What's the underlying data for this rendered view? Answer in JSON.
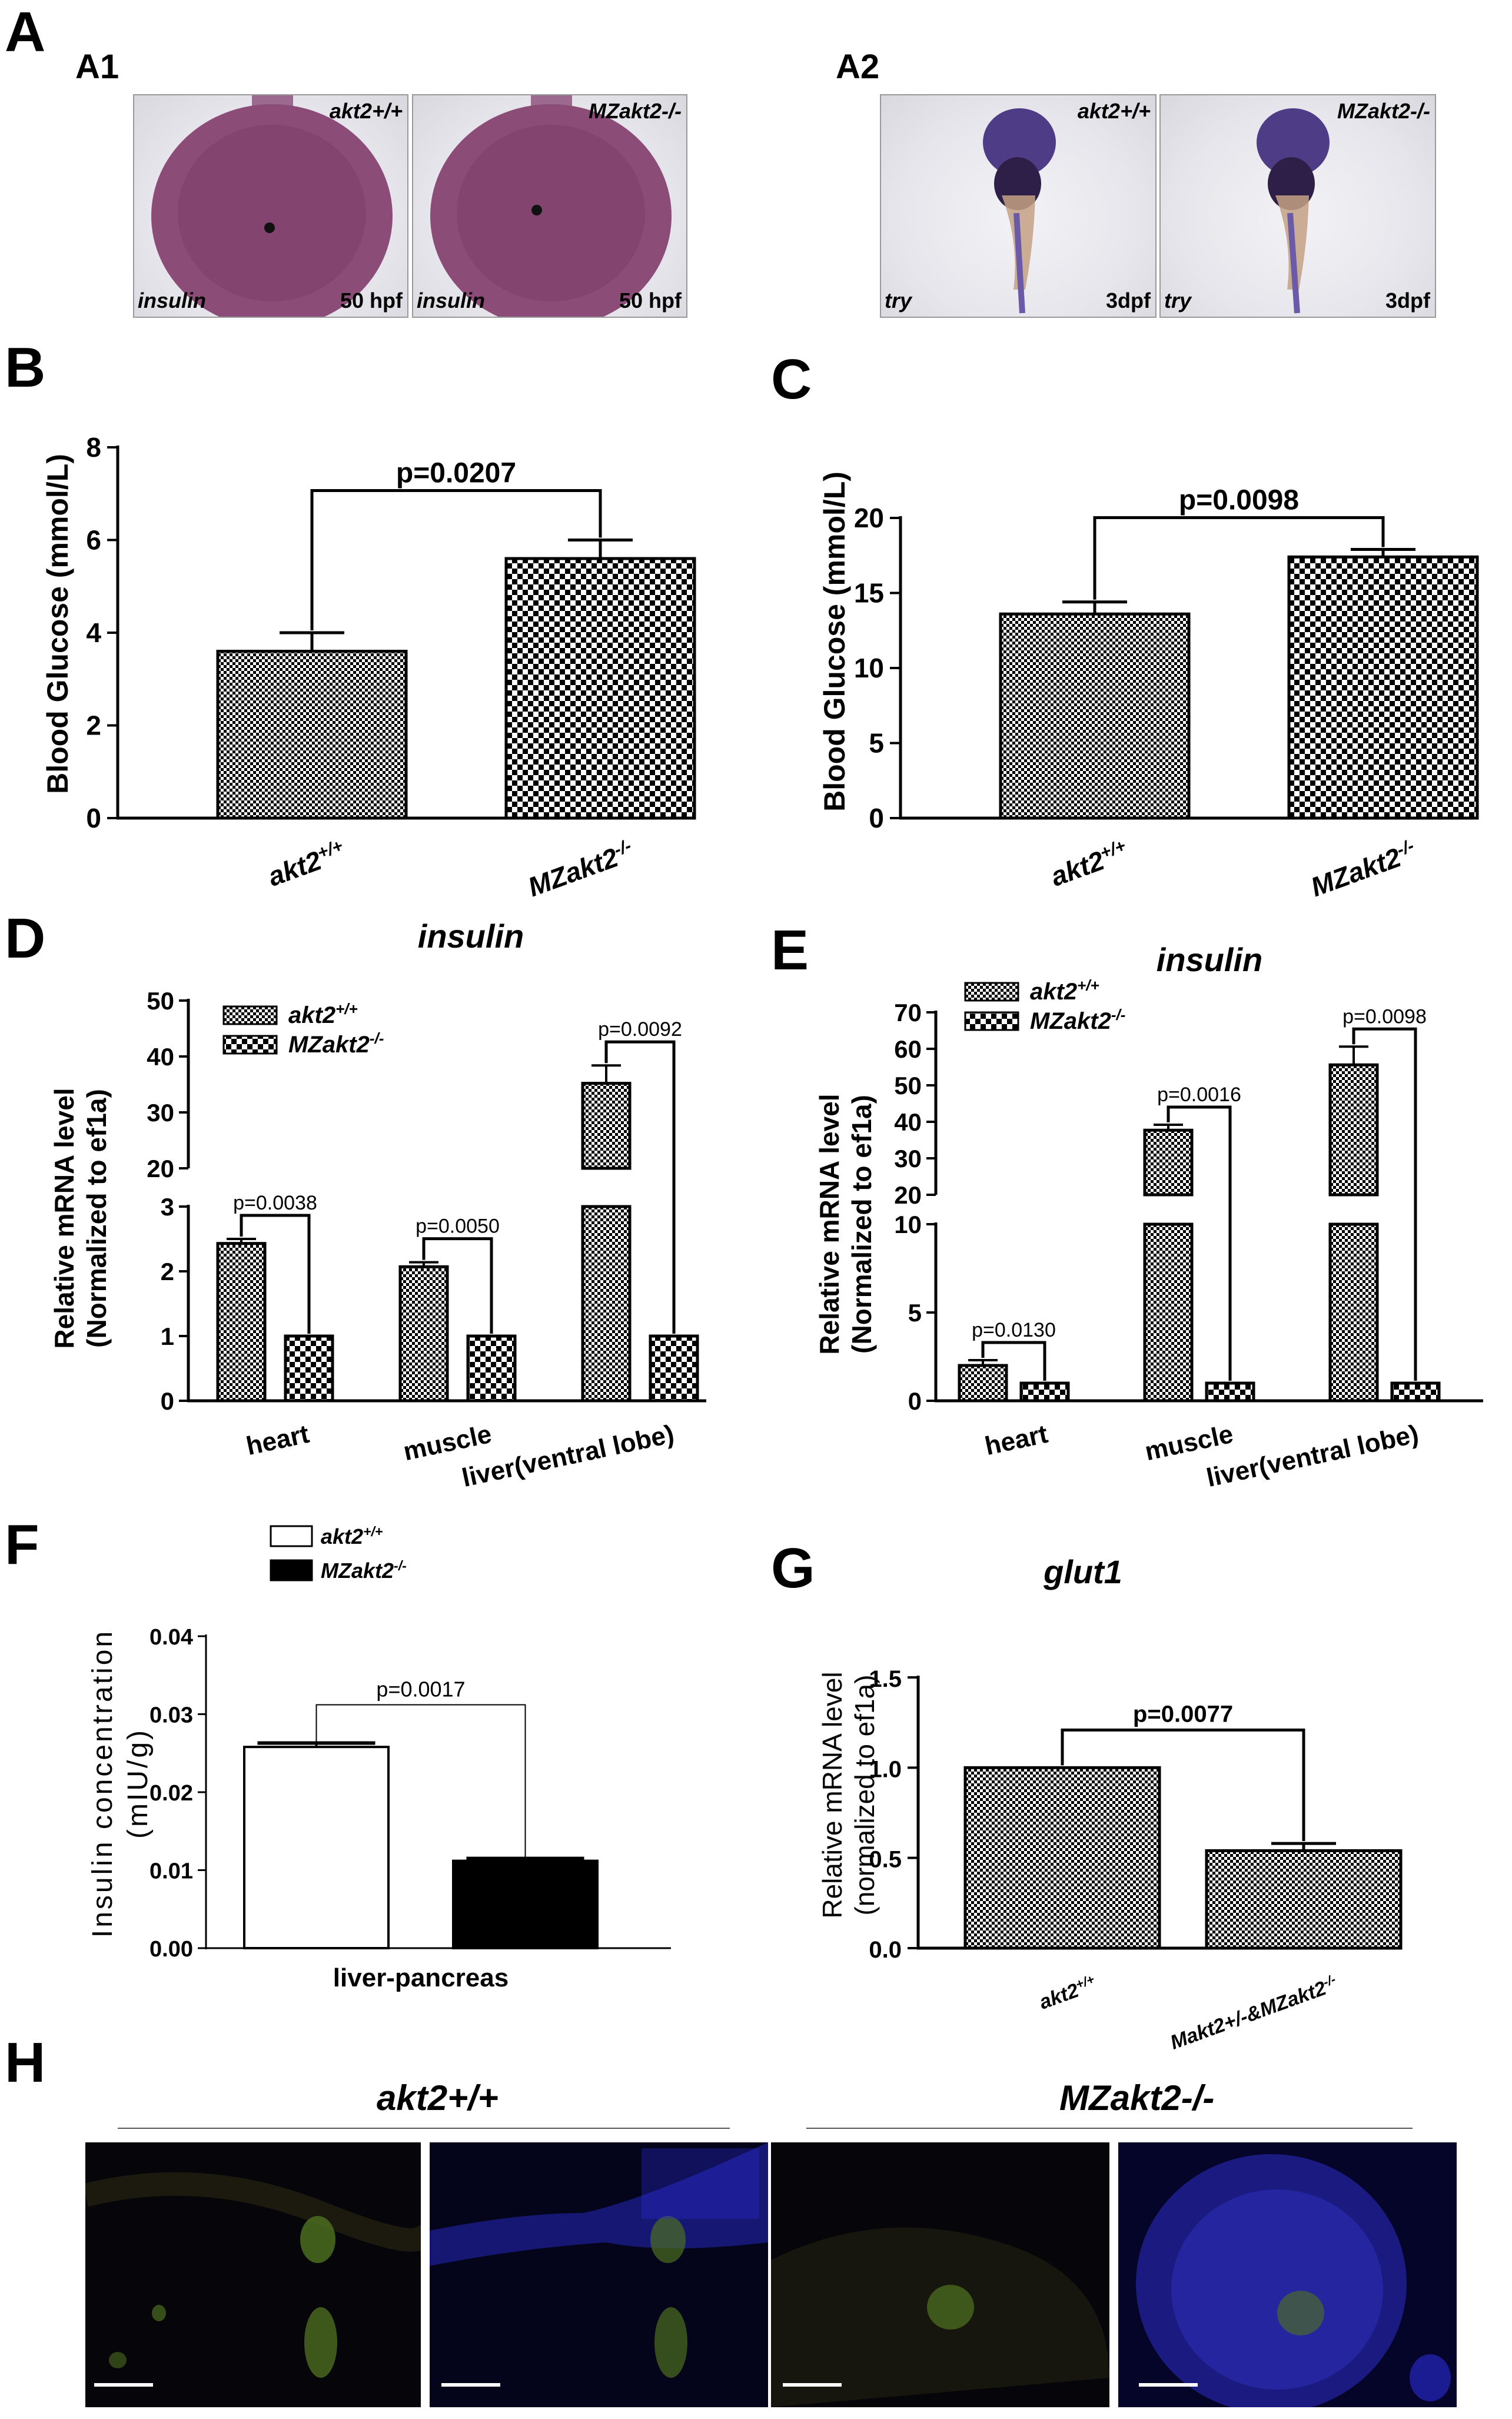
{
  "panels": {
    "A": "A",
    "A1": "A1",
    "A2": "A2",
    "B": "B",
    "C": "C",
    "D": "D",
    "E": "E",
    "F": "F",
    "G": "G",
    "H": "H"
  },
  "photos": {
    "a1": [
      {
        "genotype": "akt2+/+",
        "probe": "insulin",
        "stage": "50 hpf"
      },
      {
        "genotype": "MZakt2-/-",
        "probe": "insulin",
        "stage": "50 hpf"
      }
    ],
    "a2": [
      {
        "genotype": "akt2+/+",
        "probe": "try",
        "stage": "3dpf"
      },
      {
        "genotype": "MZakt2-/-",
        "probe": "try",
        "stage": "3dpf"
      }
    ]
  },
  "h_panel": {
    "left_title": "akt2+/+",
    "right_title": "MZakt2-/-"
  },
  "colors": {
    "axis": "#000000",
    "checker": "#000000",
    "green_stain": "#6f9b2a",
    "blue_stain": "#2a2ad8"
  },
  "chart_data": [
    {
      "id": "B",
      "type": "bar",
      "categories": [
        "akt2+/+",
        "MZakt2-/-"
      ],
      "values": [
        3.6,
        5.6
      ],
      "errors": [
        0.4,
        0.4
      ],
      "ylabel": "Blood Glucose (mmol/L)",
      "ylim": [
        0,
        8
      ],
      "yticks": [
        "0",
        "2",
        "4",
        "6",
        "8"
      ],
      "annotation": "p=0.0207"
    },
    {
      "id": "C",
      "type": "bar",
      "categories": [
        "akt2+/+",
        "MZakt2-/-"
      ],
      "values": [
        13.6,
        17.4
      ],
      "errors": [
        0.8,
        0.5
      ],
      "ylabel": "Blood Glucose (mmol/L)",
      "ylim": [
        0,
        20
      ],
      "yticks": [
        "0",
        "5",
        "10",
        "15",
        "20"
      ],
      "annotation": "p=0.0098"
    },
    {
      "id": "D",
      "type": "bar",
      "title": "insulin",
      "categories": [
        "heart",
        "muscle",
        "liver(ventral lobe)"
      ],
      "series": [
        {
          "name": "akt2+/+",
          "values": [
            2.43,
            2.07,
            35.2
          ],
          "errors": [
            0.07,
            0.07,
            3.2
          ]
        },
        {
          "name": "MZakt2-/-",
          "values": [
            1.0,
            1.0,
            1.0
          ],
          "errors": [
            0.0,
            0.0,
            0.0
          ]
        }
      ],
      "ylabel_line1": "Relative mRNA level",
      "ylabel_line2": "(Normalized to ef1a)",
      "axis_break": [
        3,
        20
      ],
      "yticks_lower": [
        "0",
        "1",
        "2",
        "3"
      ],
      "yticks_upper": [
        "20",
        "30",
        "40",
        "50"
      ],
      "annotations": [
        "p=0.0038",
        "p=0.0050",
        "p=0.0092"
      ]
    },
    {
      "id": "E",
      "type": "bar",
      "title": "insulin",
      "categories": [
        "heart",
        "muscle",
        "liver(ventral lobe)"
      ],
      "series": [
        {
          "name": "akt2+/+",
          "values": [
            2.0,
            37.7,
            55.6
          ],
          "errors": [
            0.3,
            1.5,
            5.0
          ]
        },
        {
          "name": "MZakt2-/-",
          "values": [
            1.0,
            1.0,
            1.0
          ],
          "errors": [
            0.0,
            0.0,
            0.0
          ]
        }
      ],
      "ylabel_line1": "Relative mRNA level",
      "ylabel_line2": "(Normalized to ef1a)",
      "axis_break": [
        10,
        20
      ],
      "yticks_lower": [
        "0",
        "5",
        "10"
      ],
      "yticks_upper": [
        "20",
        "30",
        "40",
        "50",
        "60",
        "70"
      ],
      "annotations": [
        "p=0.0130",
        "p=0.0016",
        "p=0.0098"
      ]
    },
    {
      "id": "F",
      "type": "bar",
      "categories": [
        "liver-pancreas"
      ],
      "series": [
        {
          "name": "akt2+/+",
          "values": [
            0.0258
          ],
          "errors": [
            0.0005
          ]
        },
        {
          "name": "MZakt2-/-",
          "values": [
            0.0112
          ],
          "errors": [
            0.0003
          ]
        }
      ],
      "ylabel_line1": "Insulin concentration",
      "ylabel_line2": "(mIU/g)",
      "ylim": [
        0,
        0.04
      ],
      "yticks": [
        "0.00",
        "0.01",
        "0.02",
        "0.03",
        "0.04"
      ],
      "annotation": "p=0.0017"
    },
    {
      "id": "G",
      "type": "bar",
      "title": "glut1",
      "categories": [
        "akt2+/+",
        "Makt2+/-&MZakt2-/-"
      ],
      "values": [
        1.0,
        0.54
      ],
      "errors": [
        0.0,
        0.04
      ],
      "ylabel_line1": "Relative mRNA level",
      "ylabel_line2": "(normalized to ef1a)",
      "ylim": [
        0,
        1.5
      ],
      "yticks": [
        "0.0",
        "0.5",
        "1.0",
        "1.5"
      ],
      "annotation": "p=0.0077"
    }
  ]
}
